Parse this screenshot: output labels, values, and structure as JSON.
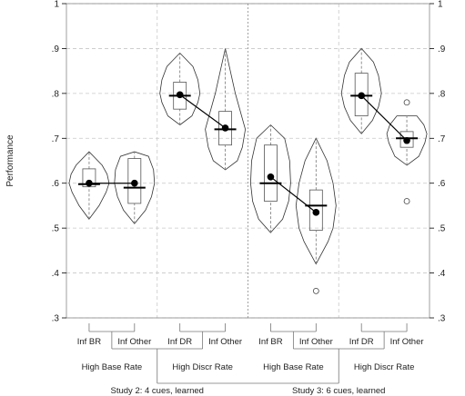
{
  "chart_data": {
    "type": "violin",
    "ylabel": "Performance",
    "ylim": [
      0.3,
      1.0
    ],
    "yticks": [
      0.3,
      0.4,
      0.5,
      0.6,
      0.7,
      0.8,
      0.9,
      1.0
    ],
    "ytick_labels": [
      ".3",
      ".4",
      ".5",
      ".6",
      ".7",
      ".8",
      ".9",
      "1"
    ],
    "grid": true,
    "groups": [
      {
        "label": "Inf BR",
        "violin": [
          [
            0.52,
            0.0
          ],
          [
            0.55,
            0.5
          ],
          [
            0.58,
            0.85
          ],
          [
            0.6,
            1.0
          ],
          [
            0.62,
            0.9
          ],
          [
            0.64,
            0.65
          ],
          [
            0.67,
            0.0
          ]
        ],
        "box": {
          "q1": 0.592,
          "median": 0.598,
          "q3": 0.632
        },
        "whisker": [
          0.52,
          0.67
        ],
        "mean": 0.6,
        "outliers": []
      },
      {
        "label": "Inf Other",
        "violin": [
          [
            0.51,
            0.0
          ],
          [
            0.54,
            0.55
          ],
          [
            0.57,
            0.85
          ],
          [
            0.6,
            1.0
          ],
          [
            0.63,
            0.95
          ],
          [
            0.66,
            0.7
          ],
          [
            0.67,
            0.0
          ]
        ],
        "box": {
          "q1": 0.555,
          "median": 0.59,
          "q3": 0.655
        },
        "whisker": [
          0.51,
          0.67
        ],
        "mean": 0.6,
        "outliers": []
      },
      {
        "label": "Inf DR",
        "violin": [
          [
            0.73,
            0.0
          ],
          [
            0.75,
            0.6
          ],
          [
            0.78,
            0.9
          ],
          [
            0.8,
            1.0
          ],
          [
            0.83,
            0.9
          ],
          [
            0.86,
            0.65
          ],
          [
            0.89,
            0.0
          ]
        ],
        "box": {
          "q1": 0.765,
          "median": 0.795,
          "q3": 0.825
        },
        "whisker": [
          0.73,
          0.89
        ],
        "mean": 0.797,
        "outliers": []
      },
      {
        "label": "Inf Other",
        "violin": [
          [
            0.63,
            0.0
          ],
          [
            0.65,
            0.6
          ],
          [
            0.68,
            0.85
          ],
          [
            0.72,
            1.0
          ],
          [
            0.76,
            0.75
          ],
          [
            0.8,
            0.5
          ],
          [
            0.85,
            0.25
          ],
          [
            0.9,
            0.0
          ]
        ],
        "box": {
          "q1": 0.685,
          "median": 0.72,
          "q3": 0.76
        },
        "whisker": [
          0.63,
          0.9
        ],
        "mean": 0.723,
        "outliers": []
      },
      {
        "label": "Inf BR",
        "violin": [
          [
            0.49,
            0.0
          ],
          [
            0.52,
            0.6
          ],
          [
            0.56,
            0.9
          ],
          [
            0.6,
            1.0
          ],
          [
            0.65,
            0.95
          ],
          [
            0.7,
            0.7
          ],
          [
            0.73,
            0.0
          ]
        ],
        "box": {
          "q1": 0.56,
          "median": 0.6,
          "q3": 0.685
        },
        "whisker": [
          0.49,
          0.73
        ],
        "mean": 0.614,
        "outliers": []
      },
      {
        "label": "Inf Other",
        "violin": [
          [
            0.42,
            0.0
          ],
          [
            0.47,
            0.6
          ],
          [
            0.5,
            0.85
          ],
          [
            0.55,
            1.0
          ],
          [
            0.6,
            0.85
          ],
          [
            0.65,
            0.55
          ],
          [
            0.7,
            0.0
          ]
        ],
        "box": {
          "q1": 0.495,
          "median": 0.55,
          "q3": 0.585
        },
        "whisker": [
          0.42,
          0.7
        ],
        "mean": 0.535,
        "outliers": [
          0.36
        ]
      },
      {
        "label": "Inf DR",
        "violin": [
          [
            0.71,
            0.0
          ],
          [
            0.74,
            0.55
          ],
          [
            0.77,
            0.85
          ],
          [
            0.8,
            1.0
          ],
          [
            0.84,
            0.85
          ],
          [
            0.87,
            0.6
          ],
          [
            0.9,
            0.0
          ]
        ],
        "box": {
          "q1": 0.75,
          "median": 0.795,
          "q3": 0.845
        },
        "whisker": [
          0.71,
          0.9
        ],
        "mean": 0.795,
        "outliers": []
      },
      {
        "label": "Inf Other",
        "violin": [
          [
            0.64,
            0.0
          ],
          [
            0.66,
            0.6
          ],
          [
            0.69,
            0.9
          ],
          [
            0.71,
            1.0
          ],
          [
            0.73,
            0.85
          ],
          [
            0.75,
            0.5
          ]
        ],
        "box": {
          "q1": 0.68,
          "median": 0.7,
          "q3": 0.715
        },
        "whisker": [
          0.64,
          0.75
        ],
        "mean": 0.695,
        "outliers": [
          0.78,
          0.56
        ]
      }
    ],
    "mean_connections": [
      [
        0,
        1
      ],
      [
        2,
        3
      ],
      [
        4,
        5
      ],
      [
        6,
        7
      ]
    ],
    "conditions": [
      "High Base Rate",
      "High Discr Rate",
      "High Base Rate",
      "High Discr Rate"
    ],
    "studies": [
      "Study 2: 4 cues, learned",
      "Study 3: 6 cues, learned"
    ]
  },
  "colors": {
    "grid": "#c8c8c8",
    "ink": "#000000",
    "box_outline": "#555555",
    "bracket": "#777777"
  }
}
